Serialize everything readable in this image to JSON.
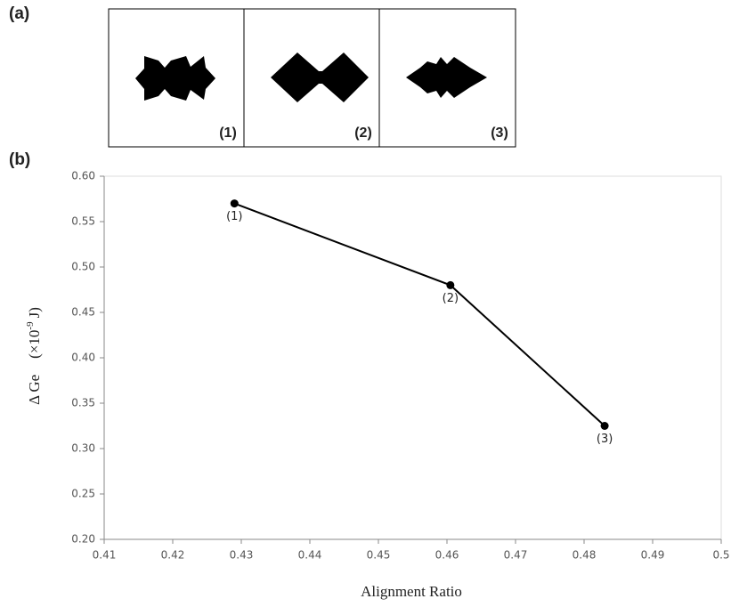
{
  "panel_a": {
    "label": "(a)",
    "images": [
      "(1)",
      "(2)",
      "(3)"
    ]
  },
  "panel_b_label": "(b)",
  "chart_data": {
    "type": "line",
    "x_label": "Alignment Ratio",
    "y_label": {
      "symbol": "Δ Ge",
      "unit_prefix": "(×10",
      "unit_exponent": "-9",
      "unit_suffix": "J)"
    },
    "x": [
      0.429,
      0.4605,
      0.483
    ],
    "values": [
      0.57,
      0.48,
      0.325
    ],
    "point_labels": [
      "(1)",
      "(2)",
      "(3)"
    ],
    "color": "#000000",
    "xlim": [
      0.41,
      0.5
    ],
    "xticks": [
      0.41,
      0.42,
      0.43,
      0.44,
      0.45,
      0.46,
      0.47,
      0.48,
      0.49,
      0.5
    ],
    "ylim": [
      0.2,
      0.6
    ],
    "yticks": [
      {
        "value": 0.2,
        "label": "0.20"
      },
      0.25,
      {
        "value": 0.3,
        "label": "0.30"
      },
      0.35,
      {
        "value": 0.4,
        "label": "0.40"
      },
      0.45,
      {
        "value": 0.5,
        "label": "0.50"
      },
      0.55,
      {
        "value": 0.6,
        "label": "0.60"
      }
    ]
  }
}
